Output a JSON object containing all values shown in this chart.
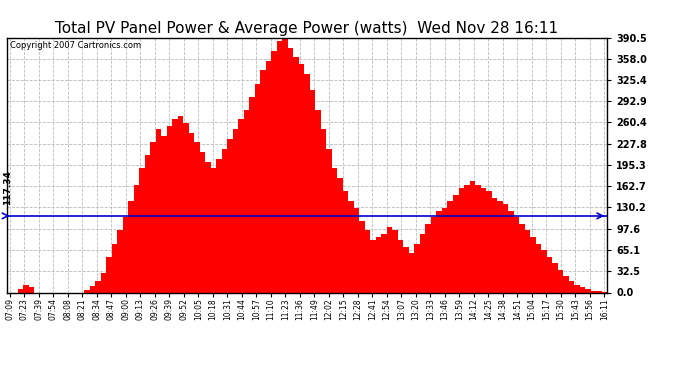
{
  "title": "Total PV Panel Power & Average Power (watts)  Wed Nov 28 16:11",
  "copyright": "Copyright 2007 Cartronics.com",
  "average_value": 117.34,
  "y_max": 390.5,
  "y_min": 0.0,
  "ytick_vals": [
    0.0,
    32.5,
    65.1,
    97.6,
    130.2,
    162.7,
    195.3,
    227.8,
    260.4,
    292.9,
    325.4,
    358.0,
    390.5
  ],
  "ytick_labels": [
    "0.0",
    "32.5",
    "65.1",
    "97.6",
    "130.2",
    "162.7",
    "195.3",
    "227.8",
    "260.4",
    "292.9",
    "325.4",
    "358.0",
    "390.5"
  ],
  "bar_color": "#ff0000",
  "avg_line_color": "#0000cc",
  "background_color": "#ffffff",
  "grid_color": "#bbbbbb",
  "title_fontsize": 11,
  "copyright_fontsize": 6,
  "avg_label": "117.34",
  "xtick_labels": [
    "07:09",
    "07:23",
    "07:39",
    "07:54",
    "08:08",
    "08:21",
    "08:34",
    "08:47",
    "09:00",
    "09:13",
    "09:26",
    "09:39",
    "09:52",
    "10:05",
    "10:18",
    "10:31",
    "10:44",
    "10:57",
    "11:10",
    "11:23",
    "11:36",
    "11:49",
    "12:02",
    "12:15",
    "12:28",
    "12:41",
    "12:54",
    "13:07",
    "13:20",
    "13:33",
    "13:46",
    "13:59",
    "14:12",
    "14:25",
    "14:38",
    "14:51",
    "15:04",
    "15:17",
    "15:30",
    "15:43",
    "15:56",
    "16:11"
  ],
  "values": [
    0,
    0,
    5,
    12,
    8,
    0,
    0,
    0,
    0,
    0,
    0,
    0,
    0,
    0,
    4,
    10,
    18,
    30,
    55,
    75,
    95,
    115,
    140,
    165,
    190,
    210,
    230,
    250,
    240,
    255,
    265,
    270,
    260,
    245,
    230,
    215,
    200,
    190,
    205,
    220,
    235,
    250,
    265,
    280,
    300,
    320,
    340,
    355,
    370,
    385,
    390,
    375,
    360,
    350,
    335,
    310,
    280,
    250,
    220,
    190,
    175,
    155,
    140,
    130,
    110,
    95,
    80,
    85,
    90,
    100,
    95,
    80,
    70,
    60,
    75,
    90,
    105,
    115,
    125,
    130,
    140,
    150,
    160,
    165,
    170,
    165,
    160,
    155,
    145,
    140,
    135,
    125,
    115,
    105,
    95,
    85,
    75,
    65,
    55,
    45,
    35,
    25,
    18,
    12,
    8,
    5,
    3,
    2,
    1
  ]
}
